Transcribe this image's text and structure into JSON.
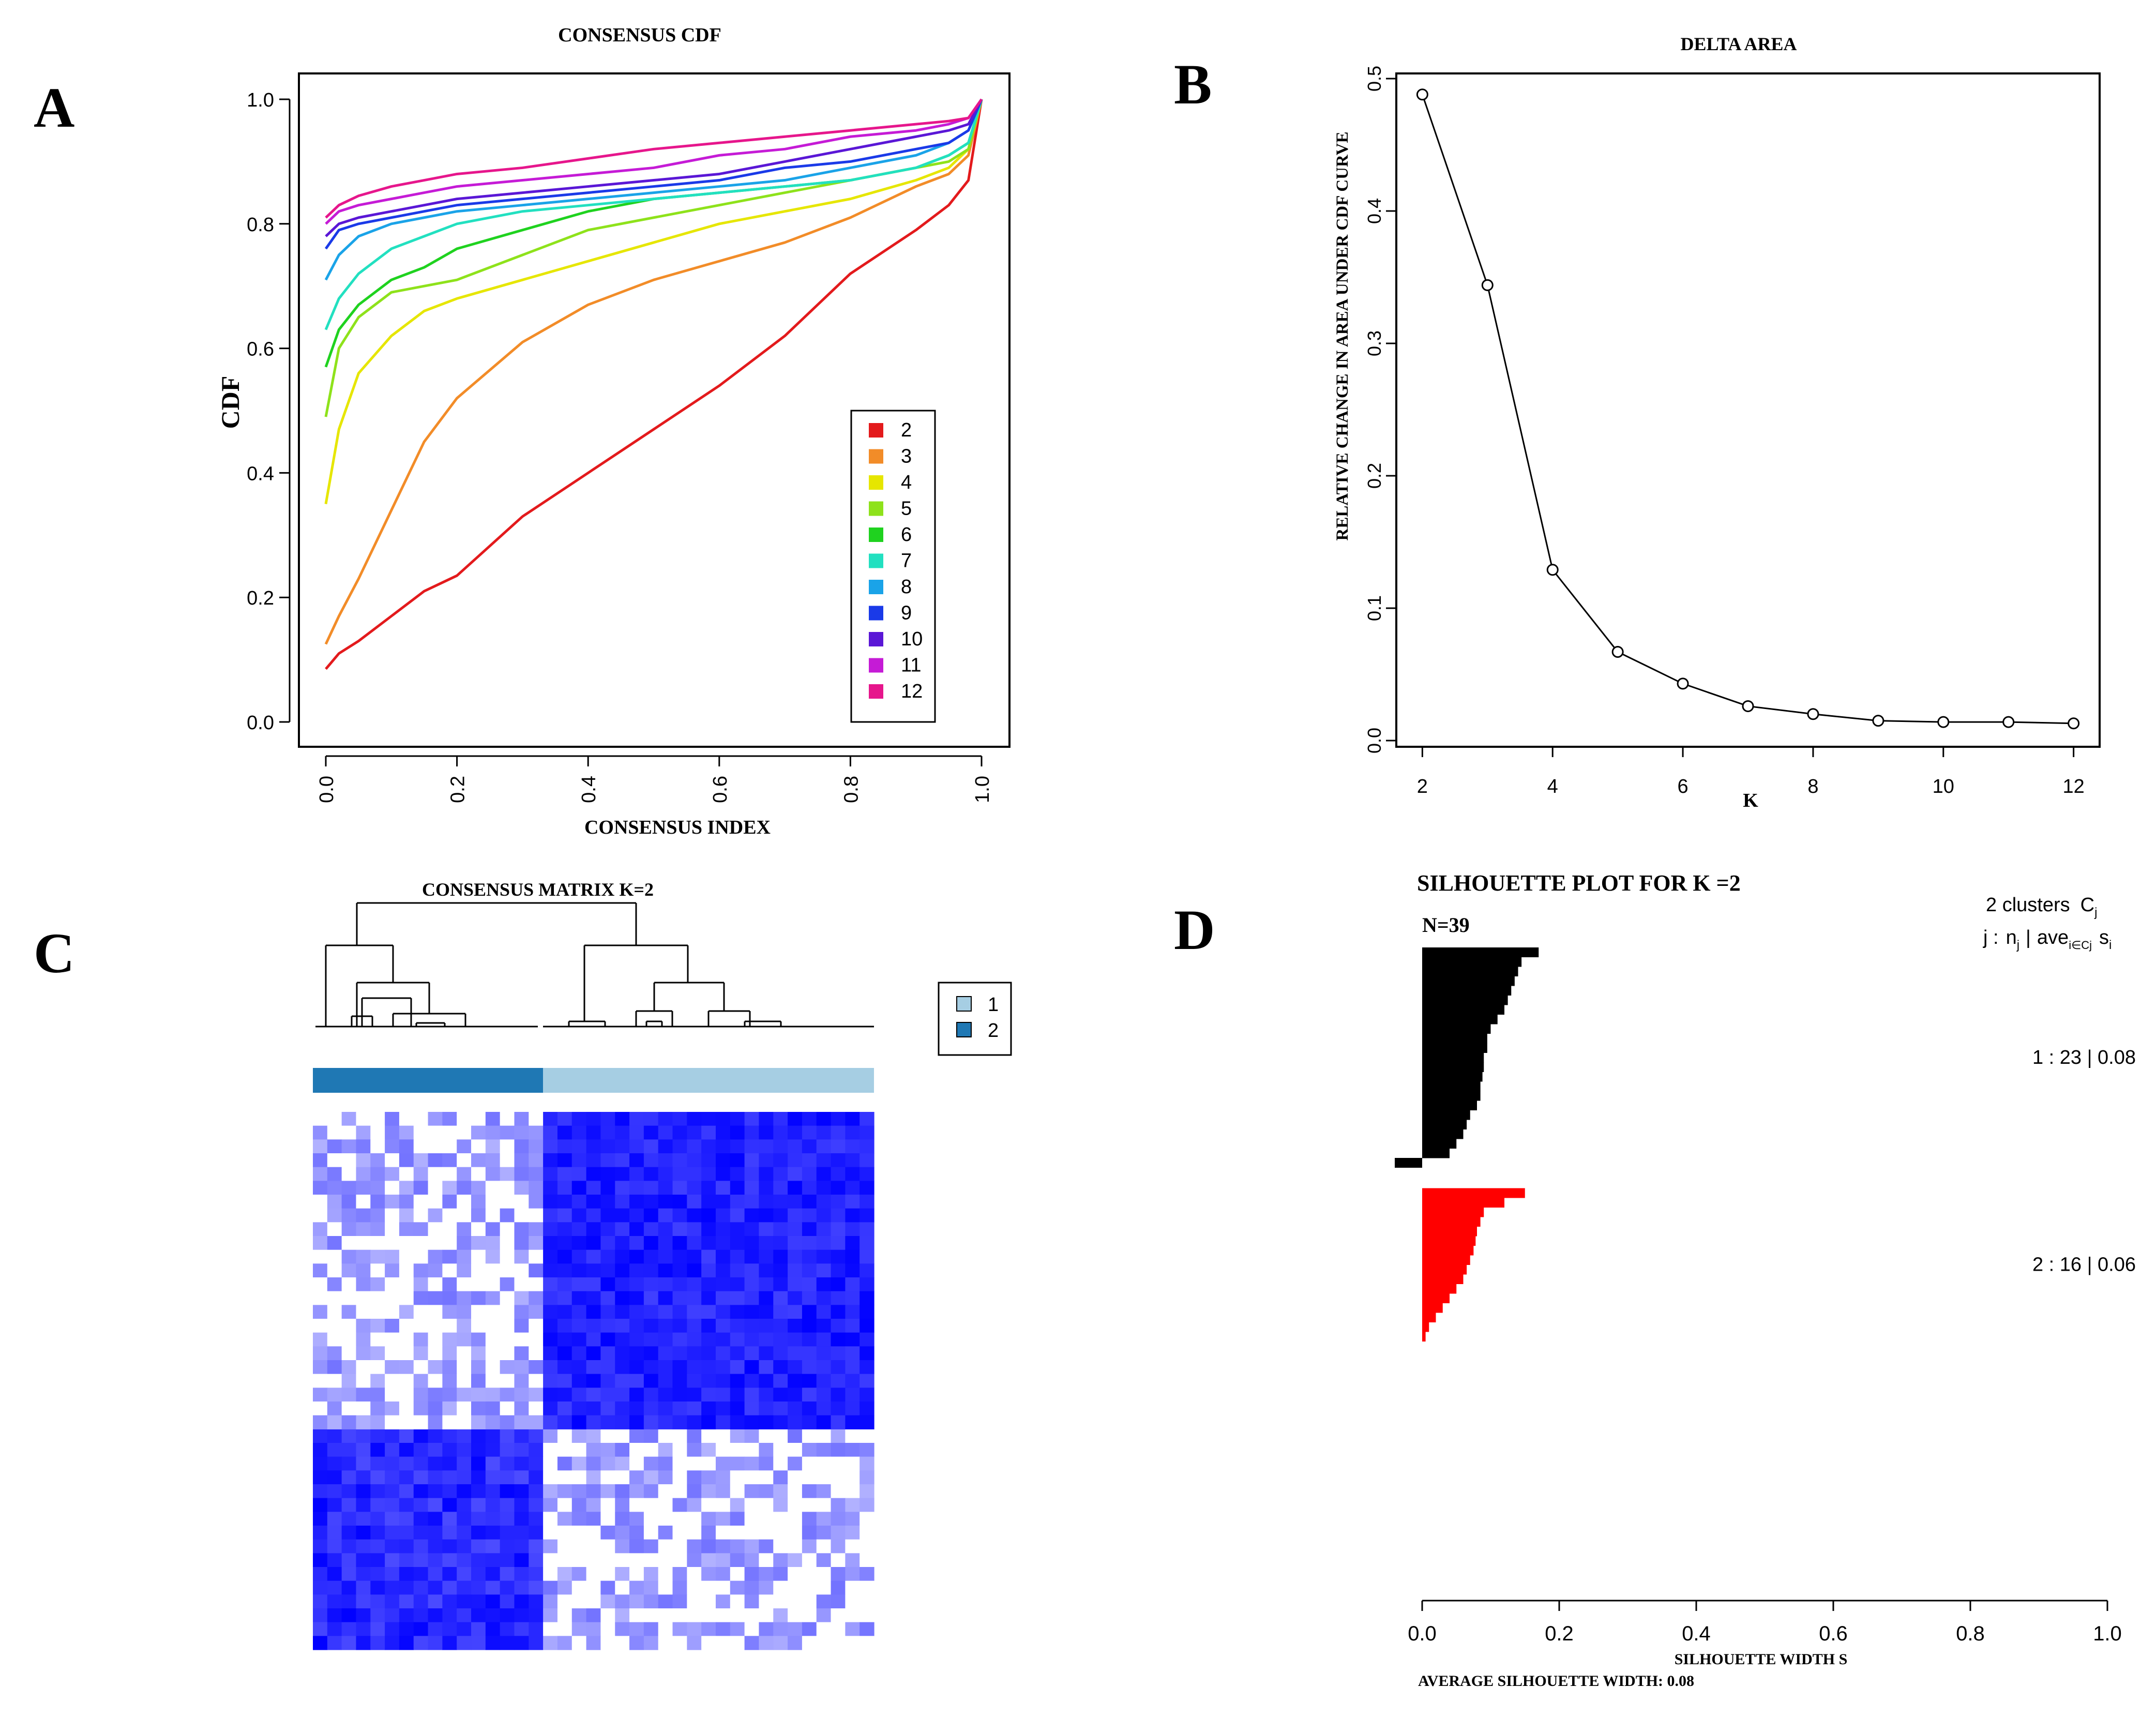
{
  "chart_data": [
    {
      "panel": "A",
      "type": "line",
      "title": "CONSENSUS CDF",
      "xlabel": "CONSENSUS INDEX",
      "ylabel": "CDF",
      "xlim": [
        0,
        1
      ],
      "ylim": [
        0,
        1
      ],
      "xticks": [
        "0.0",
        "0.2",
        "0.4",
        "0.6",
        "0.8",
        "1.0"
      ],
      "yticks": [
        "0.0",
        "0.2",
        "0.4",
        "0.6",
        "0.8",
        "1.0"
      ],
      "legend_position": "bottom-right",
      "x": [
        0,
        0.02,
        0.05,
        0.1,
        0.15,
        0.2,
        0.3,
        0.4,
        0.5,
        0.6,
        0.7,
        0.8,
        0.9,
        0.95,
        0.98,
        1.0
      ],
      "series": [
        {
          "name": "2",
          "color": "#e31a1c",
          "values": [
            0.085,
            0.11,
            0.13,
            0.17,
            0.21,
            0.235,
            0.33,
            0.4,
            0.47,
            0.54,
            0.62,
            0.72,
            0.79,
            0.83,
            0.87,
            1.0
          ]
        },
        {
          "name": "3",
          "color": "#f28c28",
          "values": [
            0.125,
            0.17,
            0.23,
            0.34,
            0.45,
            0.52,
            0.61,
            0.67,
            0.71,
            0.74,
            0.77,
            0.81,
            0.86,
            0.88,
            0.91,
            1.0
          ]
        },
        {
          "name": "4",
          "color": "#e6e600",
          "values": [
            0.35,
            0.47,
            0.56,
            0.62,
            0.66,
            0.68,
            0.71,
            0.74,
            0.77,
            0.8,
            0.82,
            0.84,
            0.87,
            0.89,
            0.92,
            1.0
          ]
        },
        {
          "name": "5",
          "color": "#8ee21b",
          "values": [
            0.49,
            0.6,
            0.65,
            0.69,
            0.7,
            0.71,
            0.75,
            0.79,
            0.81,
            0.83,
            0.85,
            0.87,
            0.89,
            0.9,
            0.92,
            1.0
          ]
        },
        {
          "name": "6",
          "color": "#1fd21f",
          "values": [
            0.57,
            0.63,
            0.67,
            0.71,
            0.73,
            0.76,
            0.79,
            0.82,
            0.84,
            0.85,
            0.86,
            0.87,
            0.89,
            0.91,
            0.93,
            1.0
          ]
        },
        {
          "name": "7",
          "color": "#22e0c0",
          "values": [
            0.63,
            0.68,
            0.72,
            0.76,
            0.78,
            0.8,
            0.82,
            0.83,
            0.84,
            0.85,
            0.86,
            0.87,
            0.89,
            0.91,
            0.93,
            1.0
          ]
        },
        {
          "name": "8",
          "color": "#1aa3e8",
          "values": [
            0.71,
            0.75,
            0.78,
            0.8,
            0.81,
            0.82,
            0.83,
            0.84,
            0.85,
            0.86,
            0.87,
            0.89,
            0.91,
            0.93,
            0.95,
            1.0
          ]
        },
        {
          "name": "9",
          "color": "#1a3ae8",
          "values": [
            0.76,
            0.79,
            0.8,
            0.81,
            0.82,
            0.83,
            0.84,
            0.85,
            0.86,
            0.87,
            0.89,
            0.9,
            0.92,
            0.93,
            0.95,
            1.0
          ]
        },
        {
          "name": "10",
          "color": "#5a17d6",
          "values": [
            0.78,
            0.8,
            0.81,
            0.82,
            0.83,
            0.84,
            0.85,
            0.86,
            0.87,
            0.88,
            0.9,
            0.92,
            0.94,
            0.95,
            0.96,
            1.0
          ]
        },
        {
          "name": "11",
          "color": "#c51bd6",
          "values": [
            0.8,
            0.82,
            0.83,
            0.84,
            0.85,
            0.86,
            0.87,
            0.88,
            0.89,
            0.91,
            0.92,
            0.94,
            0.95,
            0.96,
            0.97,
            1.0
          ]
        },
        {
          "name": "12",
          "color": "#e6168c",
          "values": [
            0.81,
            0.83,
            0.845,
            0.86,
            0.87,
            0.88,
            0.89,
            0.905,
            0.92,
            0.93,
            0.94,
            0.95,
            0.96,
            0.965,
            0.97,
            1.0
          ]
        }
      ]
    },
    {
      "panel": "B",
      "type": "line",
      "title": "DELTA AREA",
      "xlabel": "K",
      "ylabel": "RELATIVE CHANGE IN AREA UNDER CDF CURVE",
      "xlim": [
        1.6,
        12.4
      ],
      "ylim": [
        0,
        0.5
      ],
      "xticks": [
        "2",
        "4",
        "6",
        "8",
        "10",
        "12"
      ],
      "yticks": [
        "0.0",
        "0.1",
        "0.2",
        "0.3",
        "0.4",
        "0.5"
      ],
      "x": [
        2,
        3,
        4,
        5,
        6,
        7,
        8,
        9,
        10,
        11,
        12
      ],
      "values": [
        0.488,
        0.344,
        0.129,
        0.067,
        0.043,
        0.026,
        0.02,
        0.015,
        0.014,
        0.014,
        0.013
      ]
    },
    {
      "panel": "C",
      "type": "heatmap",
      "title": "CONSENSUS MATRIX K=2",
      "legend": [
        {
          "label": "1",
          "color": "#a6cee3"
        },
        {
          "label": "2",
          "color": "#1f78b4"
        }
      ],
      "n_samples": 39,
      "group_sizes": {
        "cluster_2": 16,
        "cluster_1": 23
      }
    },
    {
      "panel": "D",
      "type": "bar",
      "title": "SILHOUETTE PLOT FOR K =2",
      "n_label": "N=39",
      "header_line1": "2 clusters",
      "header_cj": "C",
      "header_cj_sub": "j",
      "header_line2_j": "j :",
      "header_line2_n": "n",
      "header_line2_n_sub": "j",
      "header_line2_sep": "|",
      "header_line2_ave": "ave",
      "header_line2_ave_sub": "i∈Cj",
      "header_line2_s": "s",
      "header_line2_s_sub": "i",
      "xlabel": "SILHOUETTE WIDTH S",
      "footer": "AVERAGE SILHOUETTE WIDTH: 0.08",
      "xlim": [
        0,
        1
      ],
      "xticks": [
        "0.0",
        "0.2",
        "0.4",
        "0.6",
        "0.8",
        "1.0"
      ],
      "clusters": [
        {
          "label": "1 :  23  |  0.08",
          "color": "#000000",
          "size": 23,
          "avg": 0.08,
          "widths": [
            0.17,
            0.145,
            0.14,
            0.135,
            0.13,
            0.125,
            0.12,
            0.11,
            0.1,
            0.095,
            0.095,
            0.09,
            0.09,
            0.088,
            0.085,
            0.085,
            0.08,
            0.07,
            0.065,
            0.06,
            0.05,
            0.04,
            -0.04
          ]
        },
        {
          "label": "2 :  16  |  0.06",
          "color": "#ff0000",
          "size": 16,
          "avg": 0.06,
          "widths": [
            0.15,
            0.12,
            0.09,
            0.085,
            0.08,
            0.078,
            0.075,
            0.07,
            0.065,
            0.06,
            0.05,
            0.04,
            0.03,
            0.02,
            0.01,
            0.005
          ]
        }
      ]
    }
  ],
  "panels": {
    "a": "A",
    "b": "B",
    "c": "C",
    "d": "D"
  }
}
